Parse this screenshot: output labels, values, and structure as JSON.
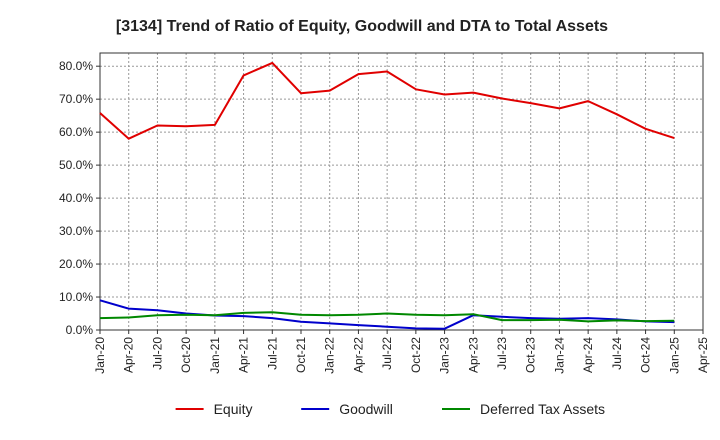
{
  "chart_data": {
    "type": "line",
    "title": "[3134]  Trend of Ratio of Equity, Goodwill and DTA to Total Assets",
    "xlabel": "",
    "ylabel": "",
    "ylim": [
      0,
      84
    ],
    "y_ticks": [
      "0.0%",
      "10.0%",
      "20.0%",
      "30.0%",
      "40.0%",
      "50.0%",
      "60.0%",
      "70.0%",
      "80.0%"
    ],
    "y_tick_values": [
      0,
      10,
      20,
      30,
      40,
      50,
      60,
      70,
      80
    ],
    "x_ticks": [
      "Jan-20",
      "Apr-20",
      "Jul-20",
      "Oct-20",
      "Jan-21",
      "Apr-21",
      "Jul-21",
      "Oct-21",
      "Jan-22",
      "Apr-22",
      "Jul-22",
      "Oct-22",
      "Jan-23",
      "Apr-23",
      "Jul-23",
      "Oct-23",
      "Jan-24",
      "Apr-24",
      "Jul-24",
      "Oct-24",
      "Jan-25",
      "Apr-25"
    ],
    "x": [
      "Jan-20",
      "Apr-20",
      "Jul-20",
      "Oct-20",
      "Jan-21",
      "Apr-21",
      "Jul-21",
      "Oct-21",
      "Jan-22",
      "Apr-22",
      "Jul-22",
      "Oct-22",
      "Jan-23",
      "Apr-23",
      "Jul-23",
      "Oct-23",
      "Jan-24",
      "Apr-24",
      "Jul-24",
      "Oct-24",
      "Jan-25"
    ],
    "grid": true,
    "legend_position": "bottom",
    "series": [
      {
        "name": "Equity",
        "color": "#e00000",
        "values": [
          65.8,
          58.0,
          62.0,
          61.8,
          62.2,
          77.2,
          81.0,
          71.8,
          72.6,
          77.6,
          78.4,
          73.0,
          71.4,
          72.0,
          70.2,
          68.8,
          67.2,
          69.4,
          65.4,
          61.0,
          58.2
        ]
      },
      {
        "name": "Goodwill",
        "color": "#0000cc",
        "values": [
          9.0,
          6.5,
          6.0,
          5.0,
          4.4,
          4.2,
          3.6,
          2.5,
          2.0,
          1.5,
          1.0,
          0.5,
          0.4,
          4.5,
          4.0,
          3.6,
          3.4,
          3.6,
          3.2,
          2.6,
          2.4
        ]
      },
      {
        "name": "Deferred Tax Assets",
        "color": "#008800",
        "values": [
          3.6,
          3.8,
          4.5,
          4.6,
          4.5,
          5.2,
          5.4,
          4.6,
          4.5,
          4.6,
          5.0,
          4.6,
          4.5,
          4.8,
          3.0,
          3.0,
          3.1,
          2.6,
          2.9,
          2.7,
          2.8
        ]
      }
    ]
  }
}
